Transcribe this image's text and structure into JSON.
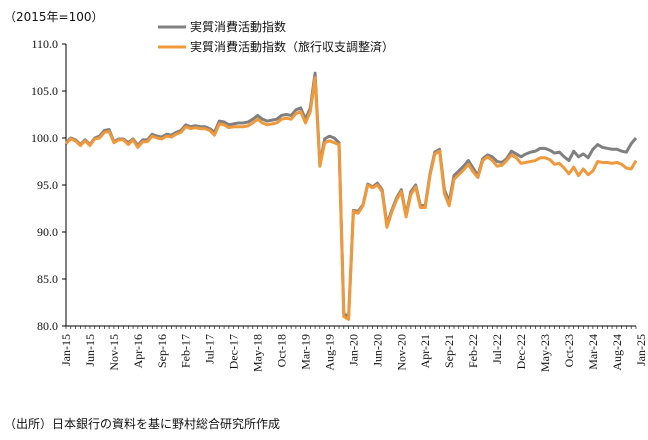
{
  "unit_label": "（2015年=100）",
  "source_note": "（出所）日本銀行の資料を基に野村総合研究所作成",
  "chart_data": {
    "type": "line",
    "ylim": [
      80,
      110
    ],
    "yticks": [
      80,
      85,
      90,
      95,
      100,
      105,
      110
    ],
    "ytick_labels": [
      "80.0",
      "85.0",
      "90.0",
      "95.0",
      "100.0",
      "105.0",
      "110.0"
    ],
    "start_month": "2015-01",
    "xtick_labels": [
      "Jan-15",
      "Jun-15",
      "Nov-15",
      "Apr-16",
      "Sep-16",
      "Feb-17",
      "Jul-17",
      "Dec-17",
      "May-18",
      "Oct-18",
      "Mar-19",
      "Aug-19",
      "Jan-20",
      "Jun-20",
      "Nov-20",
      "Apr-21",
      "Sep-21",
      "Feb-22",
      "Jul-22",
      "Dec-22",
      "May-23",
      "Oct-23",
      "Mar-24",
      "Aug-24",
      "Jan-25"
    ],
    "grid": false,
    "legend_position": "top",
    "series": [
      {
        "name": "実質消費活動指数",
        "color": "#808080",
        "values": [
          99.5,
          100.0,
          99.8,
          99.3,
          99.8,
          99.3,
          100.0,
          100.2,
          100.8,
          100.9,
          99.6,
          99.9,
          99.9,
          99.5,
          99.9,
          99.2,
          99.8,
          99.8,
          100.4,
          100.2,
          100.1,
          100.4,
          100.3,
          100.6,
          100.8,
          101.4,
          101.2,
          101.3,
          101.2,
          101.2,
          101.0,
          100.6,
          101.8,
          101.7,
          101.4,
          101.5,
          101.6,
          101.6,
          101.7,
          102.0,
          102.4,
          102.0,
          101.8,
          101.9,
          102.0,
          102.4,
          102.5,
          102.4,
          103.0,
          103.2,
          102.0,
          103.2,
          106.9,
          97.2,
          99.9,
          100.2,
          100.0,
          99.5,
          81.3,
          81.0,
          92.3,
          92.2,
          92.9,
          95.1,
          94.8,
          95.2,
          94.5,
          90.8,
          92.3,
          93.6,
          94.5,
          91.8,
          94.3,
          95.0,
          92.8,
          92.8,
          96.2,
          98.5,
          98.8,
          94.5,
          93.2,
          96.0,
          96.5,
          97.0,
          97.6,
          96.8,
          96.0,
          97.8,
          98.2,
          98.0,
          97.5,
          97.4,
          97.8,
          98.6,
          98.3,
          98.0,
          98.3,
          98.5,
          98.6,
          98.9,
          98.9,
          98.7,
          98.4,
          98.5,
          98.0,
          97.6,
          98.6,
          98.0,
          98.3,
          97.9,
          98.8,
          99.3,
          99.0,
          98.9,
          98.8,
          98.8,
          98.6,
          98.5,
          99.4,
          100.0
        ]
      },
      {
        "name": "実質消費活動指数（旅行収支調整済）",
        "color": "#f0993c",
        "values": [
          99.4,
          99.9,
          99.7,
          99.2,
          99.7,
          99.2,
          99.9,
          100.0,
          100.6,
          100.7,
          99.5,
          99.8,
          99.8,
          99.3,
          99.8,
          99.0,
          99.6,
          99.6,
          100.2,
          100.0,
          99.9,
          100.2,
          100.1,
          100.4,
          100.6,
          101.2,
          101.0,
          101.1,
          101.0,
          101.0,
          100.8,
          100.3,
          101.5,
          101.4,
          101.1,
          101.2,
          101.2,
          101.2,
          101.3,
          101.6,
          102.0,
          101.6,
          101.4,
          101.5,
          101.6,
          102.0,
          102.1,
          102.0,
          102.6,
          102.8,
          101.6,
          102.8,
          106.4,
          97.0,
          99.5,
          99.7,
          99.5,
          99.3,
          81.0,
          80.7,
          92.2,
          92.0,
          92.8,
          95.0,
          94.7,
          95.0,
          94.3,
          90.5,
          92.1,
          93.4,
          94.3,
          91.6,
          94.0,
          94.8,
          92.6,
          92.6,
          96.0,
          98.3,
          98.6,
          94.1,
          92.8,
          95.6,
          96.1,
          96.6,
          97.2,
          96.4,
          95.8,
          97.6,
          98.0,
          97.6,
          97.0,
          97.1,
          97.6,
          98.2,
          97.9,
          97.3,
          97.4,
          97.5,
          97.6,
          97.9,
          97.9,
          97.7,
          97.2,
          97.3,
          96.8,
          96.2,
          96.9,
          96.0,
          96.7,
          96.1,
          96.5,
          97.5,
          97.4,
          97.4,
          97.3,
          97.4,
          97.2,
          96.8,
          96.7,
          97.6
        ]
      }
    ]
  }
}
